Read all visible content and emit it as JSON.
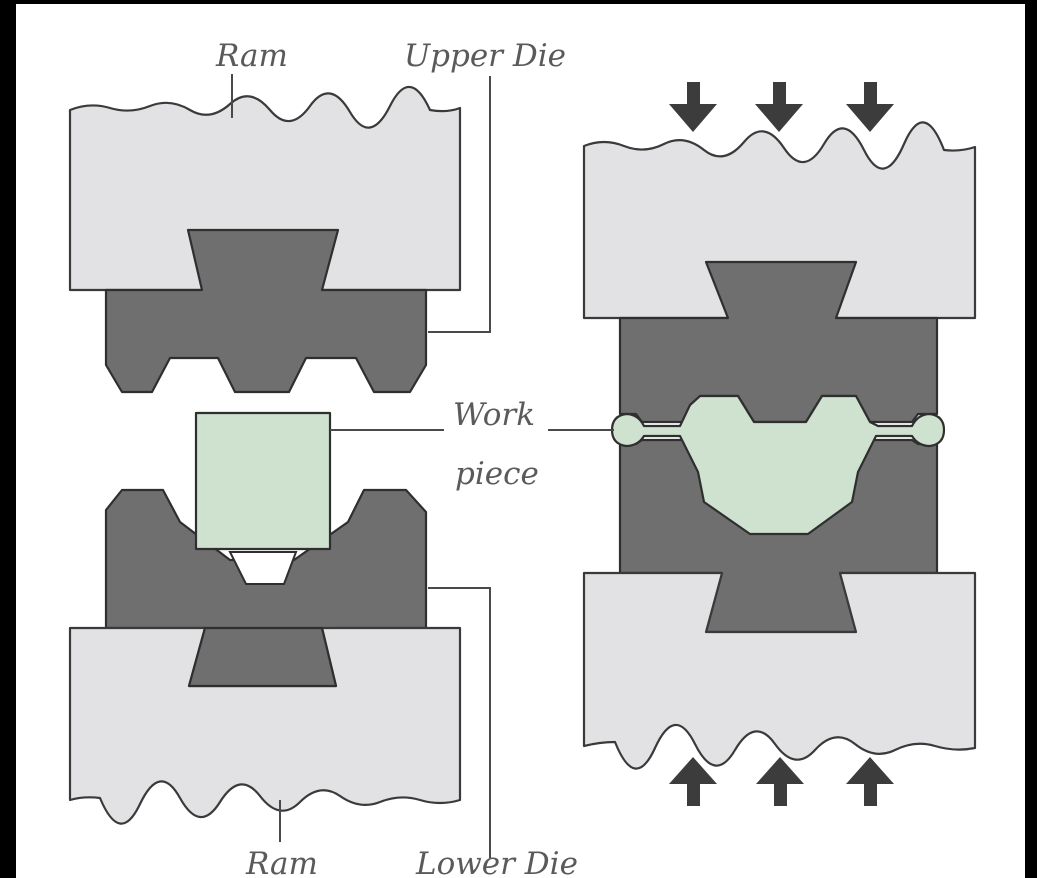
{
  "labels": {
    "ram_top": "Ram",
    "upper_die": "Upper Die",
    "work_line1": "Work",
    "work_line2": "piece",
    "ram_bottom": "Ram",
    "lower_die": "Lower Die"
  },
  "colors": {
    "ram": "#e2e2e5",
    "die": "#6f6f6f",
    "workpiece": "#cfe2cf",
    "outline": "#2f2f2f",
    "arrow": "#3c3c3c"
  },
  "arrows": {
    "top": "down-arrow-icon",
    "bottom": "up-arrow-icon"
  }
}
